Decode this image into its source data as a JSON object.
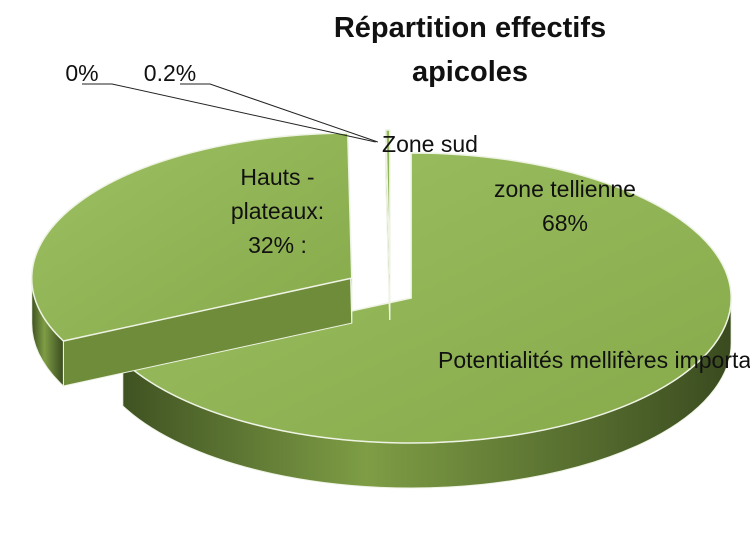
{
  "chart_data": {
    "type": "pie3d",
    "title": "Répartition effectifs apicoles",
    "categories": [
      "zone tellienne",
      "Hauts - plateaux:",
      "Zone sud",
      null
    ],
    "values": [
      68,
      32,
      0,
      0.2
    ],
    "value_labels": [
      "68%",
      "32% :",
      "0%",
      "0.2%"
    ],
    "colors": [
      "#8fb352",
      "#8fb352",
      "#8fb352",
      "#8fb352"
    ],
    "annotation": "Potentialités mellifères importantes"
  }
}
